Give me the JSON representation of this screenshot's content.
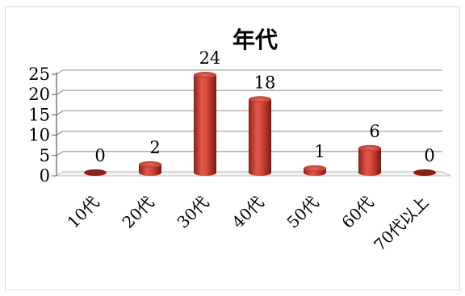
{
  "chart_data": {
    "type": "bar",
    "title": "年代",
    "categories": [
      "10代",
      "20代",
      "30代",
      "40代",
      "50代",
      "60代",
      "70代以上"
    ],
    "values": [
      0,
      2,
      24,
      18,
      1,
      6,
      0
    ],
    "data_labels": [
      "0",
      "2",
      "24",
      "18",
      "1",
      "6",
      "0"
    ],
    "yticks": [
      "0",
      "5",
      "10",
      "15",
      "20",
      "25"
    ],
    "ylim": [
      0,
      25
    ],
    "grid": true,
    "legend": "none",
    "style": "3d-cylinder",
    "bar_color": "#c0392b",
    "grid_color": "#a6a6a6"
  }
}
